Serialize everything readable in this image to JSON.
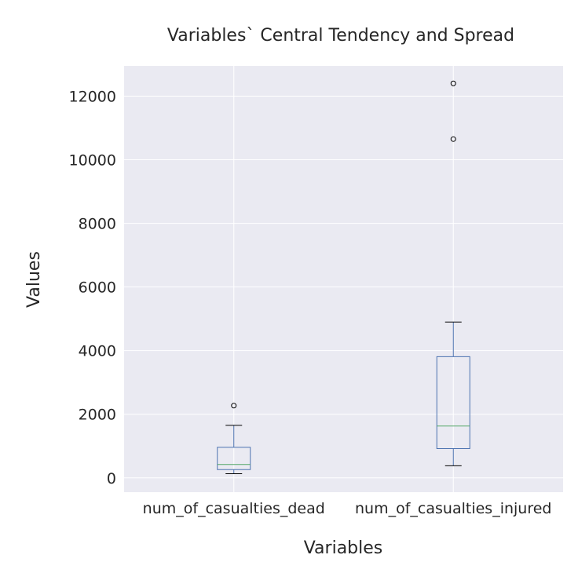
{
  "chart_data": {
    "type": "box",
    "title": "Variables` Central Tendency and Spread",
    "xlabel": "Variables",
    "ylabel": "Values",
    "categories": [
      "num_of_casualties_dead",
      "num_of_casualties_injured"
    ],
    "ylim": [
      -450,
      12950
    ],
    "yticks": [
      0,
      2000,
      4000,
      6000,
      8000,
      10000,
      12000
    ],
    "grid": true,
    "boxes": [
      {
        "name": "num_of_casualties_dead",
        "whislo": 130,
        "q1": 260,
        "med": 420,
        "q3": 960,
        "whishi": 1650,
        "fliers": [
          2270
        ]
      },
      {
        "name": "num_of_casualties_injured",
        "whislo": 380,
        "q1": 920,
        "med": 1630,
        "q3": 3810,
        "whishi": 4900,
        "fliers": [
          10650,
          12400
        ]
      }
    ],
    "colors": {
      "background": "#eaeaf2",
      "grid": "#ffffff",
      "box": "#4c72b0",
      "median": "#55a868",
      "whisker_cap": "#000000",
      "flier": "#000000"
    }
  }
}
